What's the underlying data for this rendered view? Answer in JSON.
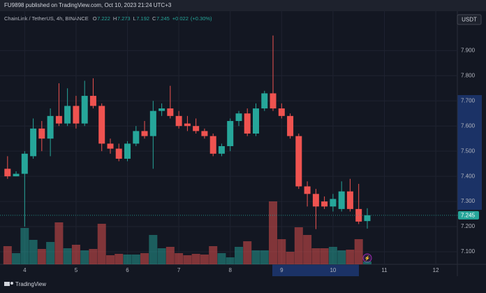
{
  "header": {
    "published": "FU9898 published on TradingView.com, Oct 10, 2023 21:24 UTC+3",
    "brand": "TradingView"
  },
  "chart_data": {
    "type": "candlestick",
    "legend": {
      "symbol": "ChainLink / TetherUS, 4h, BINANCE",
      "open_label": "O",
      "open": 7.222,
      "high_label": "H",
      "high": 7.273,
      "low_label": "L",
      "low": 7.192,
      "close_label": "C",
      "close": 7.245,
      "change": "+0.022",
      "change_pct": "(+0.30%)"
    },
    "currency": "USDT",
    "last_price": 7.245,
    "up_color": "#26a69a",
    "down_color": "#ef5350",
    "grid": true,
    "x": [
      3.667,
      3.833,
      4,
      4.167,
      4.333,
      4.5,
      4.667,
      4.833,
      5,
      5.167,
      5.333,
      5.5,
      5.667,
      5.833,
      6,
      6.167,
      6.333,
      6.5,
      6.667,
      6.833,
      7,
      7.167,
      7.333,
      7.5,
      7.667,
      7.833,
      8,
      8.167,
      8.333,
      8.5,
      8.667,
      8.833,
      9,
      9.167,
      9.333,
      9.5,
      9.667,
      9.833,
      10,
      10.167,
      10.333,
      10.5,
      10.667
    ],
    "open": [
      7.43,
      7.4,
      7.41,
      7.48,
      7.59,
      7.55,
      7.64,
      7.61,
      7.68,
      7.61,
      7.72,
      7.68,
      7.53,
      7.51,
      7.47,
      7.53,
      7.58,
      7.56,
      7.66,
      7.67,
      7.64,
      7.61,
      7.6,
      7.58,
      7.56,
      7.49,
      7.52,
      7.62,
      7.65,
      7.57,
      7.67,
      7.73,
      7.67,
      7.64,
      7.56,
      7.36,
      7.33,
      7.3,
      7.28,
      7.27,
      7.34,
      7.27,
      7.222
    ],
    "high": [
      7.48,
      7.42,
      7.5,
      7.63,
      7.62,
      7.67,
      7.77,
      7.75,
      7.72,
      7.78,
      7.79,
      7.69,
      7.55,
      7.53,
      7.54,
      7.6,
      7.62,
      7.7,
      7.69,
      7.76,
      7.66,
      7.64,
      7.63,
      7.59,
      7.57,
      7.53,
      7.63,
      7.66,
      7.67,
      7.69,
      7.74,
      7.96,
      7.69,
      7.65,
      7.57,
      7.38,
      7.35,
      7.32,
      7.33,
      7.38,
      7.39,
      7.37,
      7.273
    ],
    "low": [
      7.39,
      7.4,
      7.2,
      7.47,
      7.5,
      7.48,
      7.6,
      7.6,
      7.59,
      7.6,
      7.67,
      7.5,
      7.49,
      7.46,
      7.46,
      7.52,
      7.55,
      7.43,
      7.64,
      7.63,
      7.59,
      7.58,
      7.57,
      7.55,
      7.48,
      7.48,
      7.5,
      7.6,
      7.56,
      7.56,
      7.66,
      7.66,
      7.63,
      7.55,
      7.35,
      7.28,
      7.19,
      7.27,
      7.26,
      7.26,
      7.26,
      7.21,
      7.192
    ],
    "close": [
      7.4,
      7.41,
      7.49,
      7.59,
      7.55,
      7.64,
      7.61,
      7.68,
      7.61,
      7.72,
      7.68,
      7.53,
      7.51,
      7.47,
      7.53,
      7.58,
      7.56,
      7.66,
      7.67,
      7.64,
      7.6,
      7.6,
      7.58,
      7.56,
      7.49,
      7.52,
      7.62,
      7.65,
      7.57,
      7.67,
      7.73,
      7.67,
      7.64,
      7.56,
      7.36,
      7.33,
      7.28,
      7.28,
      7.31,
      7.34,
      7.27,
      7.22,
      7.245
    ],
    "volume": [
      26,
      16,
      52,
      35,
      22,
      32,
      60,
      23,
      28,
      20,
      22,
      58,
      13,
      15,
      14,
      14,
      16,
      42,
      23,
      25,
      16,
      13,
      15,
      14,
      26,
      16,
      10,
      25,
      33,
      20,
      20,
      90,
      36,
      18,
      53,
      42,
      23,
      23,
      25,
      20,
      21,
      36,
      4
    ],
    "xlim": [
      3.52,
      12.42
    ],
    "xticks": [
      4,
      5,
      6,
      7,
      8,
      9,
      10,
      11,
      12
    ],
    "ylim": [
      7.05,
      8.04
    ],
    "yticks": [
      {
        "value": 7.9,
        "label": "7.900"
      },
      {
        "value": 7.8,
        "label": "7.800"
      },
      {
        "value": 7.7,
        "label": "7.700"
      },
      {
        "value": 7.6,
        "label": "7.600"
      },
      {
        "value": 7.5,
        "label": "7.500"
      },
      {
        "value": 7.4,
        "label": "7.400"
      },
      {
        "value": 7.3,
        "label": "7.300"
      },
      {
        "value": 7.2,
        "label": "7.200"
      },
      {
        "value": 7.1,
        "label": "7.100"
      }
    ]
  }
}
